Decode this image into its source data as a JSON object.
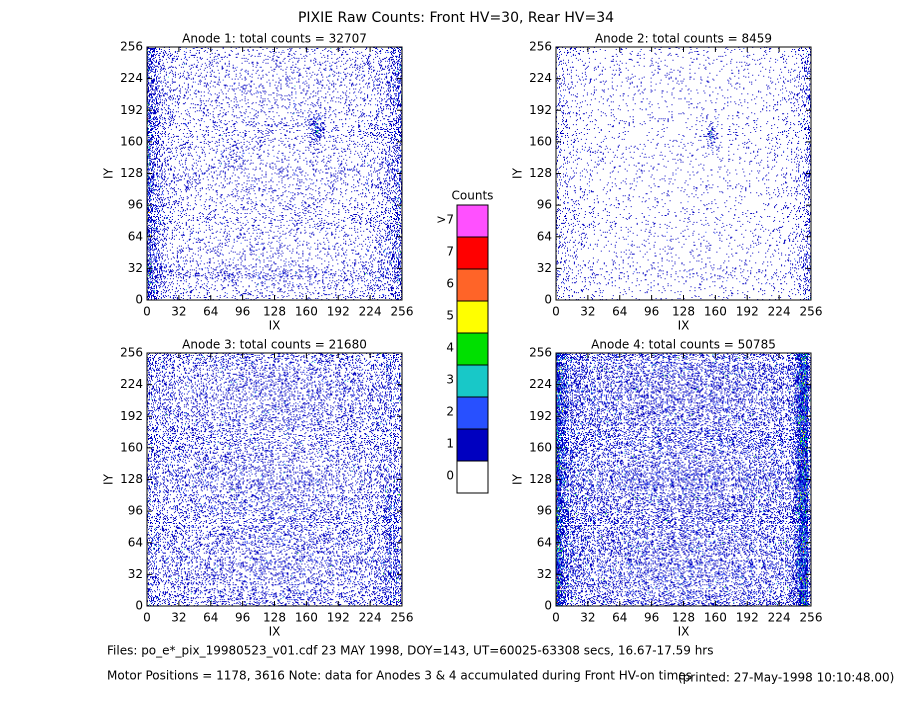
{
  "title": "PIXIE Raw Counts:  Front HV=30, Rear HV=34",
  "chart_data": [
    {
      "type": "heatmap",
      "title": "Anode 1: total counts = 32707",
      "xlabel": "IX",
      "ylabel": "IY",
      "xlim": [
        0,
        256
      ],
      "ylim": [
        0,
        256
      ],
      "xticks": [
        0,
        32,
        64,
        96,
        128,
        160,
        192,
        224,
        256
      ],
      "yticks": [
        0,
        32,
        64,
        96,
        128,
        160,
        192,
        224,
        256
      ]
    },
    {
      "type": "heatmap",
      "title": "Anode 2: total counts = 8459",
      "xlabel": "IX",
      "ylabel": "IY",
      "xlim": [
        0,
        256
      ],
      "ylim": [
        0,
        256
      ],
      "xticks": [
        0,
        32,
        64,
        96,
        128,
        160,
        192,
        224,
        256
      ],
      "yticks": [
        0,
        32,
        64,
        96,
        128,
        160,
        192,
        224,
        256
      ]
    },
    {
      "type": "heatmap",
      "title": "Anode 3: total counts = 21680",
      "xlabel": "IX",
      "ylabel": "IY",
      "xlim": [
        0,
        256
      ],
      "ylim": [
        0,
        256
      ],
      "xticks": [
        0,
        32,
        64,
        96,
        128,
        160,
        192,
        224,
        256
      ],
      "yticks": [
        0,
        32,
        64,
        96,
        128,
        160,
        192,
        224,
        256
      ]
    },
    {
      "type": "heatmap",
      "title": "Anode 4: total counts = 50785",
      "xlabel": "IX",
      "ylabel": "IY",
      "xlim": [
        0,
        256
      ],
      "ylim": [
        0,
        256
      ],
      "xticks": [
        0,
        32,
        64,
        96,
        128,
        160,
        192,
        224,
        256
      ],
      "yticks": [
        0,
        32,
        64,
        96,
        128,
        160,
        192,
        224,
        256
      ]
    }
  ],
  "colorbar": {
    "title": "Counts",
    "ticks": [
      0,
      1,
      2,
      3,
      4,
      5,
      6,
      7,
      {
        "value": 8,
        "label": ">7"
      }
    ],
    "colors": [
      "#ffffff",
      "#0000c0",
      "#2850ff",
      "#18c8c8",
      "#00e000",
      "#ffff00",
      "#ff6428",
      "#ff0000",
      "#ff50ff"
    ]
  },
  "footer": {
    "files": "Files: po_e*_pix_19980523_v01.cdf    23 MAY 1998, DOY=143, UT=60025-63308 secs, 16.67-17.59 hrs",
    "motor": "Motor Positions = 1178, 3616   Note: data for Anodes 3 & 4 accumulated during Front HV-on times",
    "printed": "(printed: 27-May-1998 10:10:48.00)"
  }
}
